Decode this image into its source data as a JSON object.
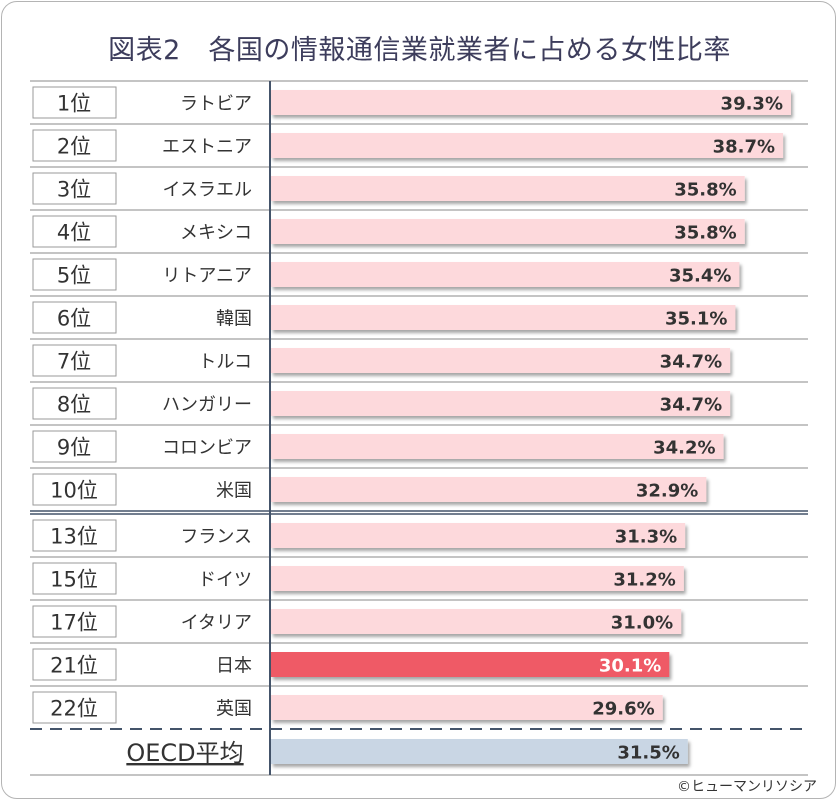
{
  "title": "図表2　各国の情報通信業就業者に占める女性比率",
  "credit": "©ヒューマンリソシア",
  "colors": {
    "bar": "#fdd9dc",
    "bar_highlight": "#ef5a66",
    "bar_oecd": "#c9d6e4",
    "axis": "#44546a",
    "rank_border": "#9a9a9a"
  },
  "chart_data": {
    "type": "bar",
    "orientation": "horizontal",
    "rows": [
      {
        "rank": "1位",
        "country": "ラトビア",
        "value": 39.3,
        "label": "39.3%"
      },
      {
        "rank": "2位",
        "country": "エストニア",
        "value": 38.7,
        "label": "38.7%"
      },
      {
        "rank": "3位",
        "country": "イスラエル",
        "value": 35.8,
        "label": "35.8%"
      },
      {
        "rank": "4位",
        "country": "メキシコ",
        "value": 35.8,
        "label": "35.8%"
      },
      {
        "rank": "5位",
        "country": "リトアニア",
        "value": 35.4,
        "label": "35.4%"
      },
      {
        "rank": "6位",
        "country": "韓国",
        "value": 35.1,
        "label": "35.1%"
      },
      {
        "rank": "7位",
        "country": "トルコ",
        "value": 34.7,
        "label": "34.7%"
      },
      {
        "rank": "8位",
        "country": "ハンガリー",
        "value": 34.7,
        "label": "34.7%"
      },
      {
        "rank": "9位",
        "country": "コロンビア",
        "value": 34.2,
        "label": "34.2%"
      },
      {
        "rank": "10位",
        "country": "米国",
        "value": 32.9,
        "label": "32.9%"
      },
      {
        "rank": "13位",
        "country": "フランス",
        "value": 31.3,
        "label": "31.3%"
      },
      {
        "rank": "15位",
        "country": "ドイツ",
        "value": 31.2,
        "label": "31.2%"
      },
      {
        "rank": "17位",
        "country": "イタリア",
        "value": 31.0,
        "label": "31.0%"
      },
      {
        "rank": "21位",
        "country": "日本",
        "value": 30.1,
        "label": "30.1%",
        "highlight": true
      },
      {
        "rank": "22位",
        "country": "英国",
        "value": 29.6,
        "label": "29.6%"
      }
    ],
    "average": {
      "name": "OECD平均",
      "value": 31.5,
      "label": "31.5%"
    }
  }
}
